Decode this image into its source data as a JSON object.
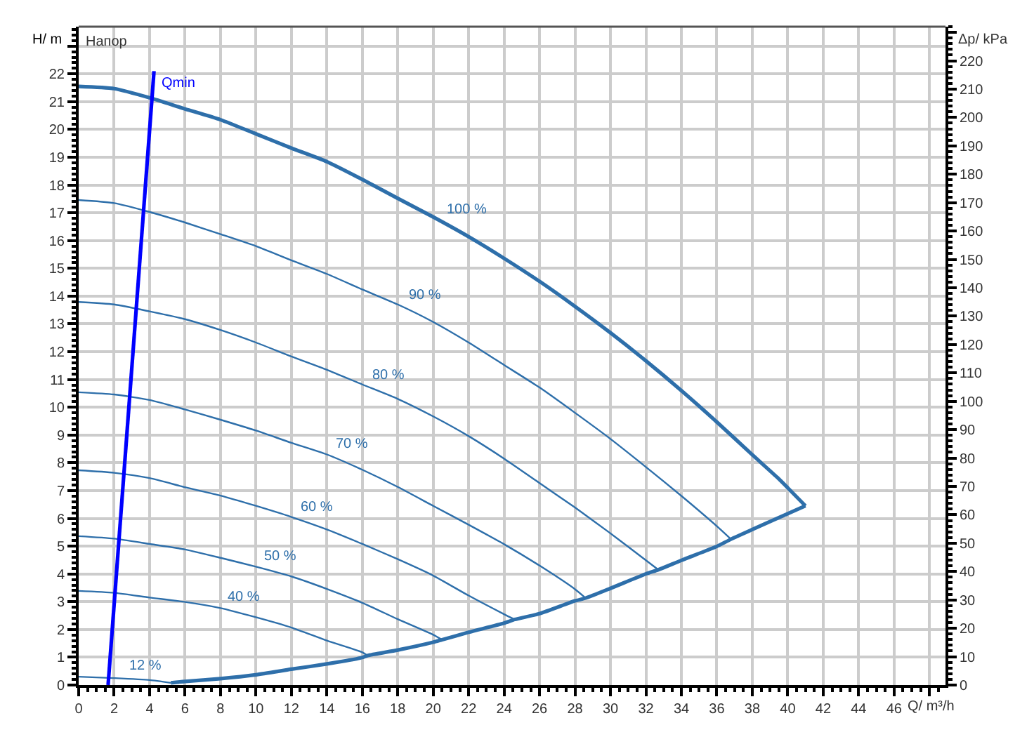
{
  "chart_data": {
    "type": "line",
    "title": "Напор",
    "xlabel": "Q/ m³/h",
    "ylabel": "H/ m",
    "y2label": "Δp/ kPa",
    "xlim": [
      0,
      48.9
    ],
    "xticks": [
      0,
      2,
      4,
      6,
      8,
      10,
      12,
      14,
      16,
      18,
      20,
      22,
      24,
      26,
      28,
      30,
      32,
      34,
      36,
      38,
      40,
      42,
      44,
      46,
      {
        "value": 48,
        "label": null
      }
    ],
    "ylim": [
      0,
      23.7
    ],
    "yticks": [
      0,
      1,
      2,
      3,
      4,
      5,
      6,
      7,
      8,
      9,
      10,
      11,
      12,
      13,
      14,
      15,
      16,
      17,
      18,
      19,
      20,
      21,
      22,
      {
        "value": 23,
        "label": null
      }
    ],
    "y2lim": [
      0,
      232
    ],
    "y2ticks": [
      0,
      10,
      20,
      30,
      40,
      50,
      60,
      70,
      80,
      90,
      100,
      110,
      120,
      130,
      140,
      150,
      160,
      170,
      180,
      190,
      200,
      210,
      220,
      {
        "value": 230,
        "label": null
      }
    ],
    "grid": true,
    "legend": false,
    "marker": "none",
    "line_style": "solid",
    "series": [
      {
        "name": "100 %",
        "color": "#2e6faa",
        "x": [
          0,
          2,
          4,
          6,
          8,
          10,
          12,
          14,
          16,
          18,
          20,
          22,
          24,
          26,
          28,
          30,
          32,
          34,
          36,
          38,
          39.4,
          40,
          41
        ],
        "values": [
          21.55,
          21.47,
          21.14,
          20.74,
          20.35,
          19.84,
          19.33,
          18.84,
          18.2,
          17.52,
          16.85,
          16.14,
          15.36,
          14.53,
          13.63,
          12.68,
          11.67,
          10.6,
          9.47,
          8.29,
          7.48,
          7.1,
          6.45
        ]
      },
      {
        "name": "90 %",
        "color": "#2e6faa",
        "x": [
          0,
          2,
          4,
          6,
          8,
          10,
          12,
          14,
          16,
          18,
          20,
          22,
          24,
          26,
          28,
          30,
          32,
          34,
          36,
          36.8
        ],
        "values": [
          17.46,
          17.35,
          17.03,
          16.65,
          16.23,
          15.8,
          15.29,
          14.8,
          14.24,
          13.7,
          13.07,
          12.33,
          11.52,
          10.71,
          9.8,
          8.86,
          7.85,
          6.81,
          5.72,
          5.25
        ]
      },
      {
        "name": "80 %",
        "color": "#2e6faa",
        "x": [
          0,
          2,
          4,
          6,
          8,
          10,
          12,
          14,
          16,
          18,
          20,
          22,
          24,
          26,
          28,
          30,
          32,
          32.7
        ],
        "values": [
          13.79,
          13.7,
          13.45,
          13.17,
          12.78,
          12.33,
          11.83,
          11.35,
          10.82,
          10.3,
          9.67,
          8.96,
          8.15,
          7.27,
          6.39,
          5.46,
          4.49,
          4.15
        ]
      },
      {
        "name": "70 %",
        "color": "#2e6faa",
        "x": [
          0,
          2,
          4,
          6,
          8,
          10,
          12,
          14,
          16,
          18,
          20,
          22,
          24,
          26,
          28,
          28.6
        ],
        "values": [
          10.54,
          10.46,
          10.26,
          9.92,
          9.55,
          9.16,
          8.72,
          8.3,
          7.75,
          7.13,
          6.45,
          5.77,
          5.07,
          4.3,
          3.45,
          3.13
        ]
      },
      {
        "name": "60 %",
        "color": "#2e6faa",
        "x": [
          0,
          2,
          4,
          6,
          8,
          10,
          12,
          14,
          16,
          18,
          20,
          22,
          24,
          24.6
        ],
        "values": [
          7.73,
          7.64,
          7.45,
          7.12,
          6.82,
          6.45,
          6.05,
          5.6,
          5.08,
          4.53,
          3.94,
          3.22,
          2.55,
          2.36
        ]
      },
      {
        "name": "50 %",
        "color": "#2e6faa",
        "x": [
          0,
          2,
          4,
          6,
          8,
          10,
          12,
          14,
          16,
          18,
          20,
          20.5
        ],
        "values": [
          5.36,
          5.27,
          5.08,
          4.88,
          4.58,
          4.26,
          3.91,
          3.46,
          2.96,
          2.37,
          1.81,
          1.63
        ]
      },
      {
        "name": "40 %",
        "color": "#2e6faa",
        "x": [
          0,
          2,
          4,
          6,
          8,
          10,
          12,
          14,
          16,
          16.3
        ],
        "values": [
          3.39,
          3.32,
          3.15,
          2.99,
          2.77,
          2.44,
          2.07,
          1.6,
          1.18,
          1.06
        ]
      },
      {
        "name": "12 %",
        "color": "#2e6faa",
        "x": [
          0,
          2,
          4,
          5.2
        ],
        "values": [
          0.3,
          0.25,
          0.18,
          0.08
        ]
      },
      {
        "color": "#2e6faa",
        "x": [
          5.2,
          6,
          8,
          10,
          12,
          14,
          16,
          16.3,
          18,
          20,
          20.5,
          22,
          24,
          24.6,
          26,
          28,
          28.6,
          30,
          32,
          32.7,
          34,
          36,
          36.8,
          38,
          40,
          41
        ],
        "values": [
          0.08,
          0.13,
          0.23,
          0.37,
          0.57,
          0.76,
          0.99,
          1.06,
          1.26,
          1.54,
          1.63,
          1.9,
          2.23,
          2.36,
          2.57,
          3.03,
          3.13,
          3.48,
          4.0,
          4.15,
          4.49,
          4.99,
          5.25,
          5.6,
          6.17,
          6.45
        ]
      },
      {
        "name": "Qmin",
        "color": "#0000ff",
        "x": [
          1.66,
          4.25
        ],
        "values": [
          0,
          22.1
        ]
      }
    ]
  }
}
